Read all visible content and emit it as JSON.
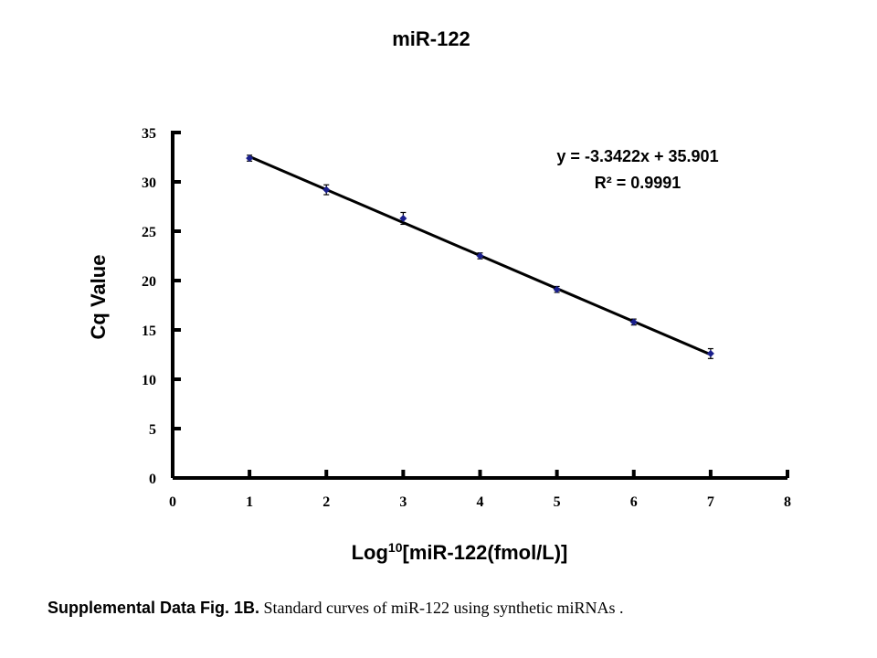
{
  "chart_data": {
    "type": "scatter",
    "title": "miR-122",
    "xlabel_prefix": "Log",
    "xlabel_sup": "10",
    "xlabel_suffix": "[miR-122(fmol/L)]",
    "ylabel": "Cq Value",
    "xlim": [
      0,
      8
    ],
    "ylim": [
      0,
      35
    ],
    "xticks": [
      "0",
      "1",
      "2",
      "3",
      "4",
      "5",
      "6",
      "7",
      "8"
    ],
    "yticks": [
      "0",
      "5",
      "10",
      "15",
      "20",
      "25",
      "30",
      "35"
    ],
    "grid": false,
    "series": [
      {
        "color": "#1a1f8c",
        "x": [
          1,
          2,
          3,
          4,
          5,
          6,
          7
        ],
        "y": [
          32.4,
          29.2,
          26.3,
          22.5,
          19.1,
          15.8,
          12.6
        ],
        "error": [
          0.3,
          0.5,
          0.6,
          0.3,
          0.3,
          0.3,
          0.5
        ]
      }
    ],
    "trendline": {
      "slope": -3.3422,
      "intercept": 35.901,
      "x_range": [
        1,
        7
      ],
      "equation": "y = -3.3422x + 35.901",
      "r_squared": "R² = 0.9991"
    }
  },
  "caption": {
    "bold": "Supplemental Data Fig. 1B.",
    "text": " Standard curves of miR-122 using synthetic miRNAs ."
  }
}
